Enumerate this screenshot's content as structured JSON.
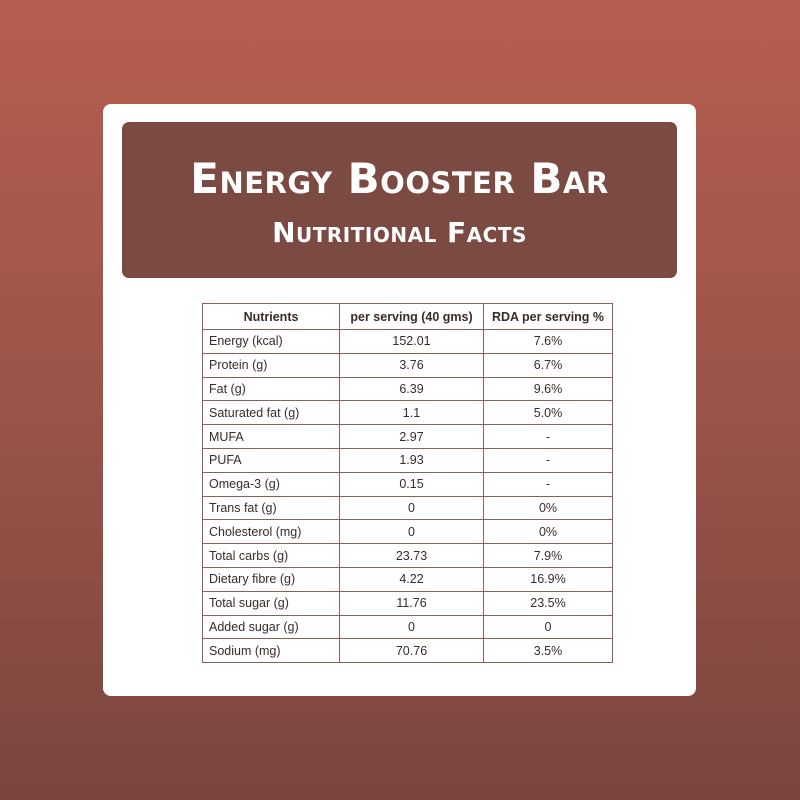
{
  "header": {
    "title": "Energy Booster Bar",
    "subtitle": "Nutritional Facts"
  },
  "table": {
    "columns": [
      "Nutrients",
      "per serving (40 gms)",
      "RDA per serving %"
    ],
    "rows": [
      {
        "nutrient": "Energy (kcal)",
        "per_serving": "152.01",
        "rda": "7.6%",
        "indent": false
      },
      {
        "nutrient": "Protein (g)",
        "per_serving": "3.76",
        "rda": "6.7%",
        "indent": false
      },
      {
        "nutrient": "Fat (g)",
        "per_serving": "6.39",
        "rda": "9.6%",
        "indent": false
      },
      {
        "nutrient": "Saturated fat (g)",
        "per_serving": "1.1",
        "rda": "5.0%",
        "indent": true
      },
      {
        "nutrient": "MUFA",
        "per_serving": "2.97",
        "rda": "-",
        "indent": true
      },
      {
        "nutrient": "PUFA",
        "per_serving": "1.93",
        "rda": "-",
        "indent": true
      },
      {
        "nutrient": "Omega-3 (g)",
        "per_serving": "0.15",
        "rda": "-",
        "indent": true
      },
      {
        "nutrient": "Trans fat (g)",
        "per_serving": "0",
        "rda": "0%",
        "indent": true
      },
      {
        "nutrient": "Cholesterol (mg)",
        "per_serving": "0",
        "rda": "0%",
        "indent": true
      },
      {
        "nutrient": "Total carbs (g)",
        "per_serving": "23.73",
        "rda": "7.9%",
        "indent": false
      },
      {
        "nutrient": "Dietary fibre (g)",
        "per_serving": "4.22",
        "rda": "16.9%",
        "indent": true
      },
      {
        "nutrient": "Total sugar (g)",
        "per_serving": "11.76",
        "rda": "23.5%",
        "indent": true
      },
      {
        "nutrient": "Added sugar (g)",
        "per_serving": "0",
        "rda": "0",
        "indent": true
      },
      {
        "nutrient": "Sodium (mg)",
        "per_serving": "70.76",
        "rda": "3.5%",
        "indent": false
      }
    ]
  },
  "colors": {
    "background_top": "#b65e51",
    "background_bottom": "#7a4640",
    "banner": "#7b4a42",
    "table_border": "#8b5f58"
  }
}
